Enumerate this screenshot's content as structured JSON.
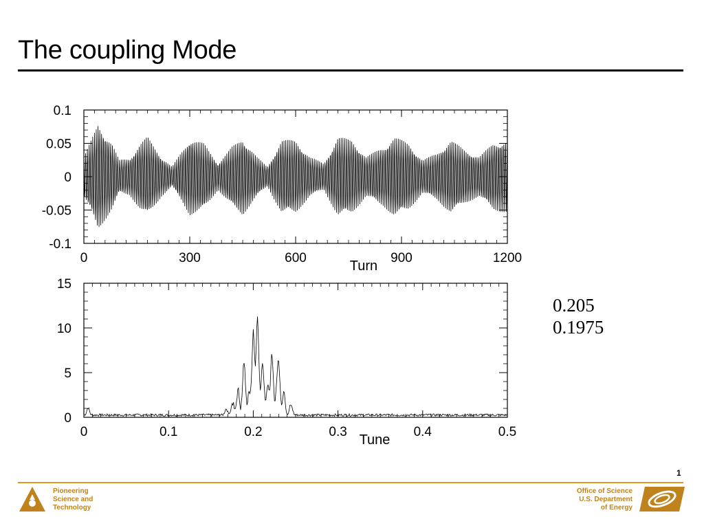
{
  "slide": {
    "title": "The coupling Mode",
    "page_number": "1"
  },
  "side_values": [
    "0.205",
    "0.1975"
  ],
  "footer": {
    "left_lines": [
      "Pioneering",
      "Science and",
      "Technology"
    ],
    "right_lines": [
      "Office of Science",
      "U.S. Department",
      "of Energy"
    ],
    "left_logo_icon": "argonne-triangle-logo-icon",
    "right_logo_icon": "doe-office-of-science-logo-icon",
    "accent_color": "#d99b1e",
    "text_color": "#c0821a"
  },
  "chart_data": [
    {
      "type": "line",
      "xlabel": "Turn",
      "ylabel": "",
      "xlim": [
        0,
        1200
      ],
      "ylim": [
        -0.1,
        0.1
      ],
      "xticks": [
        "0",
        "300",
        "600",
        "900",
        "1200"
      ],
      "yticks": [
        "0.1",
        "0.05",
        "0",
        "-0.05",
        "-0.1"
      ],
      "signal": {
        "description_tunes": [
          0.1975,
          0.205
        ],
        "max_amplitude": 0.085,
        "min_amplitude": -0.07
      },
      "envelope": {
        "x": [
          0,
          25,
          40,
          60,
          80,
          100,
          130,
          160,
          180,
          220,
          250,
          280,
          300,
          340,
          380,
          420,
          450,
          490,
          520,
          560,
          600,
          640,
          680,
          720,
          760,
          800,
          850,
          880,
          920,
          960,
          1000,
          1040,
          1080,
          1120,
          1160,
          1200
        ],
        "y": [
          0.03,
          0.06,
          0.08,
          0.065,
          0.05,
          0.025,
          0.028,
          0.05,
          0.06,
          0.03,
          0.015,
          0.04,
          0.058,
          0.05,
          0.02,
          0.045,
          0.058,
          0.03,
          0.015,
          0.055,
          0.055,
          0.03,
          0.02,
          0.06,
          0.055,
          0.03,
          0.045,
          0.06,
          0.05,
          0.025,
          0.035,
          0.055,
          0.04,
          0.03,
          0.05,
          0.055
        ]
      }
    },
    {
      "type": "line",
      "xlabel": "Tune",
      "ylabel": "",
      "xlim": [
        0,
        0.5
      ],
      "ylim": [
        0,
        15
      ],
      "xticks": [
        "0",
        "0.1",
        "0.2",
        "0.3",
        "0.4",
        "0.5"
      ],
      "yticks": [
        "15",
        "10",
        "5",
        "0"
      ],
      "baseline": 0.3,
      "peaks": [
        {
          "x": 0.182,
          "y": 2.6
        },
        {
          "x": 0.189,
          "y": 5.7
        },
        {
          "x": 0.195,
          "y": 2.3
        },
        {
          "x": 0.2,
          "y": 8.9
        },
        {
          "x": 0.205,
          "y": 10.6
        },
        {
          "x": 0.211,
          "y": 5.7
        },
        {
          "x": 0.217,
          "y": 3.1
        },
        {
          "x": 0.222,
          "y": 6.7
        },
        {
          "x": 0.228,
          "y": 2.0
        },
        {
          "x": 0.23,
          "y": 4.9
        },
        {
          "x": 0.236,
          "y": 2.4
        },
        {
          "x": 0.176,
          "y": 1.0
        },
        {
          "x": 0.168,
          "y": 0.7
        },
        {
          "x": 0.245,
          "y": 1.0
        },
        {
          "x": 0.005,
          "y": 0.8
        }
      ]
    }
  ]
}
